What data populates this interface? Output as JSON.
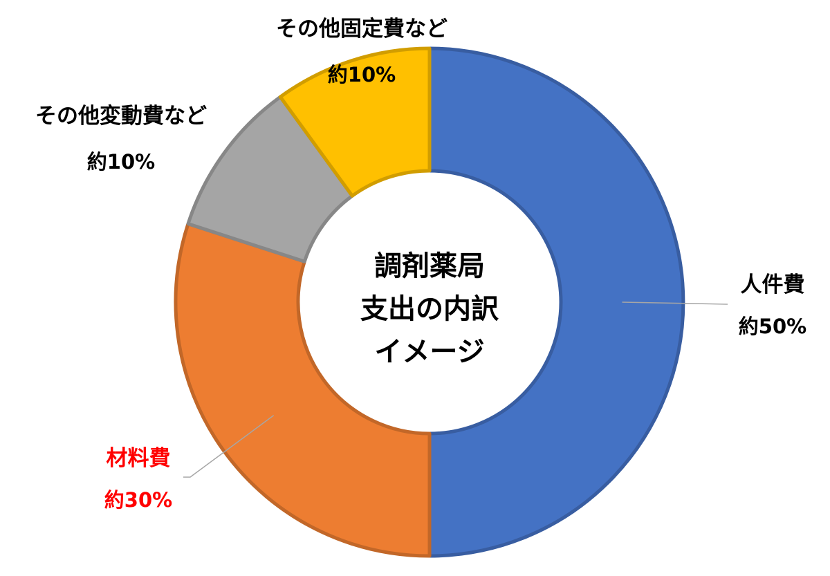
{
  "chart_data": {
    "type": "pie",
    "variant": "donut",
    "title": "",
    "center_text": [
      "調剤薬局",
      "支出の内訳",
      "イメージ"
    ],
    "slices": [
      {
        "name": "人件費",
        "value": 50,
        "label": "約50%",
        "color": "#4472C4",
        "label_color": "#000000"
      },
      {
        "name": "材料費",
        "value": 30,
        "label": "約30%",
        "color": "#ED7D31",
        "label_color": "#FF0000"
      },
      {
        "name": "その他変動費など",
        "value": 10,
        "label": "約10%",
        "color": "#A5A5A5",
        "label_color": "#000000"
      },
      {
        "name": "その他固定費など",
        "value": 10,
        "label": "約10%",
        "color": "#FFC000",
        "label_color": "#000000"
      }
    ],
    "start_angle": "top, clockwise"
  }
}
